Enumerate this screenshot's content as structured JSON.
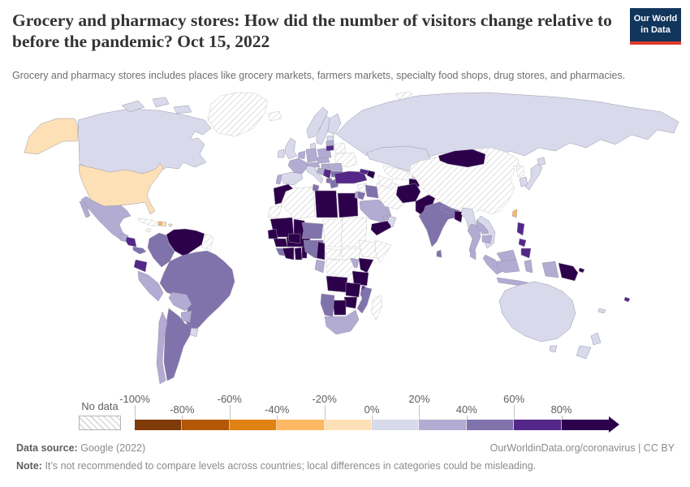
{
  "header": {
    "title": "Grocery and pharmacy stores: How did the number of visitors change relative to before the pandemic? Oct 15, 2022",
    "subtitle": "Grocery and pharmacy stores includes places like grocery markets, farmers markets, specialty food shops, drug stores, and pharmacies.",
    "logo": {
      "line1": "Our World",
      "line2": "in Data",
      "bg_color": "#12355c",
      "accent_color": "#dc3b2b"
    }
  },
  "legend": {
    "no_data_label": "No data",
    "ticks": [
      "-100%",
      "-80%",
      "-60%",
      "-40%",
      "-20%",
      "0%",
      "20%",
      "40%",
      "60%",
      "80%"
    ]
  },
  "footer": {
    "source_label": "Data source:",
    "source_value": "Google (2022)",
    "link_text": "OurWorldinData.org/coronavirus | CC BY",
    "note_label": "Note:",
    "note_text": "It’s not recommended to compare levels across countries; local differences in categories could be misleading."
  },
  "chart_data": {
    "type": "choropleth_map",
    "title": "Grocery and pharmacy stores: How did the number of visitors change relative to before the pandemic?",
    "date": "Oct 15, 2022",
    "unit": "percent change in visitors relative to pre-pandemic baseline",
    "legend_range": [
      "-100%",
      "80%+"
    ],
    "no_data": {
      "label": "No data",
      "style": "hatched"
    },
    "bands": [
      {
        "label": "-100 to -80%",
        "color": "#7f3b08"
      },
      {
        "label": "-80 to -60%",
        "color": "#b35806"
      },
      {
        "label": "-60 to -40%",
        "color": "#e08214"
      },
      {
        "label": "-40 to -20%",
        "color": "#fdb863"
      },
      {
        "label": "-20 to 0%",
        "color": "#fee0b6"
      },
      {
        "label": "0 to 20%",
        "color": "#d8daeb"
      },
      {
        "label": "20 to 40%",
        "color": "#b2abd2"
      },
      {
        "label": "40 to 60%",
        "color": "#8073ac"
      },
      {
        "label": "60 to 80%",
        "color": "#542788"
      },
      {
        "label": "80%+",
        "color": "#2d004b"
      }
    ],
    "countries": [
      {
        "id": "grl",
        "name": "Greenland",
        "band": "no data"
      },
      {
        "id": "can",
        "name": "Canada",
        "band": "0 to 20%"
      },
      {
        "id": "usa",
        "name": "United States",
        "band": "-20 to 0%"
      },
      {
        "id": "mex",
        "name": "Mexico",
        "band": "20 to 40%"
      },
      {
        "id": "gtm",
        "name": "Guatemala",
        "band": "20 to 40%"
      },
      {
        "id": "nic",
        "name": "Nicaragua",
        "band": "60 to 80%"
      },
      {
        "id": "pan",
        "name": "Panama",
        "band": "40 to 60%"
      },
      {
        "id": "cub",
        "name": "Cuba",
        "band": "no data"
      },
      {
        "id": "jam",
        "name": "Jamaica",
        "band": "no data"
      },
      {
        "id": "hti",
        "name": "Haiti",
        "band": "-40 to -20%"
      },
      {
        "id": "dom",
        "name": "Dominican Republic",
        "band": "-20 to 0%"
      },
      {
        "id": "pri",
        "name": "Puerto Rico",
        "band": "-20 to 0%"
      },
      {
        "id": "ven",
        "name": "Venezuela",
        "band": "80%+"
      },
      {
        "id": "guy",
        "name": "Guyana & Suriname",
        "band": "no data"
      },
      {
        "id": "col",
        "name": "Colombia",
        "band": "40 to 60%"
      },
      {
        "id": "ecu",
        "name": "Ecuador",
        "band": "60 to 80%"
      },
      {
        "id": "per",
        "name": "Peru",
        "band": "20 to 40%"
      },
      {
        "id": "bra",
        "name": "Brazil",
        "band": "40 to 60%"
      },
      {
        "id": "bol",
        "name": "Bolivia",
        "band": "20 to 40%"
      },
      {
        "id": "pry",
        "name": "Paraguay",
        "band": "20 to 40%"
      },
      {
        "id": "ury",
        "name": "Uruguay",
        "band": "0 to 20%"
      },
      {
        "id": "arg",
        "name": "Argentina",
        "band": "40 to 60%"
      },
      {
        "id": "chl",
        "name": "Chile",
        "band": "20 to 40%"
      },
      {
        "id": "isl",
        "name": "Iceland",
        "band": "no data"
      },
      {
        "id": "sjm",
        "name": "Svalbard",
        "band": "no data"
      },
      {
        "id": "nor",
        "name": "Norway",
        "band": "0 to 20%"
      },
      {
        "id": "swe",
        "name": "Sweden",
        "band": "0 to 20%"
      },
      {
        "id": "fin",
        "name": "Finland",
        "band": "0 to 20%"
      },
      {
        "id": "dnk",
        "name": "Denmark",
        "band": "0 to 20%"
      },
      {
        "id": "gbr",
        "name": "United Kingdom",
        "band": "0 to 20%"
      },
      {
        "id": "irl",
        "name": "Ireland",
        "band": "0 to 20%"
      },
      {
        "id": "nld",
        "name": "Netherlands & Belgium",
        "band": "20 to 40%"
      },
      {
        "id": "deu",
        "name": "Germany",
        "band": "20 to 40%"
      },
      {
        "id": "fra",
        "name": "France",
        "band": "20 to 40%"
      },
      {
        "id": "esp",
        "name": "Spain",
        "band": "0 to 20%"
      },
      {
        "id": "prt",
        "name": "Portugal",
        "band": "20 to 40%"
      },
      {
        "id": "ita",
        "name": "Italy",
        "band": "0 to 20%"
      },
      {
        "id": "aut",
        "name": "Austria & Switzerland",
        "band": "20 to 40%"
      },
      {
        "id": "cze",
        "name": "Czechia & Slovakia",
        "band": "20 to 40%"
      },
      {
        "id": "hun",
        "name": "Hungary",
        "band": "20 to 40%"
      },
      {
        "id": "pol",
        "name": "Poland",
        "band": "20 to 40%"
      },
      {
        "id": "ltu",
        "name": "Lithuania",
        "band": "60 to 80%"
      },
      {
        "id": "lva",
        "name": "Latvia",
        "band": "20 to 40%"
      },
      {
        "id": "est",
        "name": "Estonia",
        "band": "0 to 20%"
      },
      {
        "id": "blr",
        "name": "Belarus",
        "band": "no data"
      },
      {
        "id": "ukr",
        "name": "Ukraine",
        "band": "no data"
      },
      {
        "id": "rou",
        "name": "Romania",
        "band": "20 to 40%"
      },
      {
        "id": "srb",
        "name": "Serbia",
        "band": "60 to 80%"
      },
      {
        "id": "hrv",
        "name": "Croatia & Bosnia",
        "band": "20 to 40%"
      },
      {
        "id": "bgr",
        "name": "Bulgaria",
        "band": "40 to 60%"
      },
      {
        "id": "alb",
        "name": "Albania & North Macedonia",
        "band": "40 to 60%"
      },
      {
        "id": "grc",
        "name": "Greece",
        "band": "40 to 60%"
      },
      {
        "id": "rus",
        "name": "Russia",
        "band": "0 to 20%"
      },
      {
        "id": "tur",
        "name": "Turkey",
        "band": "60 to 80%"
      },
      {
        "id": "syr",
        "name": "Syria",
        "band": "no data"
      },
      {
        "id": "irq",
        "name": "Iraq",
        "band": "40 to 60%"
      },
      {
        "id": "isr",
        "name": "Israel",
        "band": "20 to 40%"
      },
      {
        "id": "jor",
        "name": "Jordan",
        "band": "40 to 60%"
      },
      {
        "id": "sau",
        "name": "Saudi Arabia",
        "band": "20 to 40%"
      },
      {
        "id": "yem",
        "name": "Yemen",
        "band": "80%+"
      },
      {
        "id": "omn",
        "name": "Oman",
        "band": "0 to 20%"
      },
      {
        "id": "are",
        "name": "United Arab Emirates",
        "band": "20 to 40%"
      },
      {
        "id": "irn",
        "name": "Iran",
        "band": "no data"
      },
      {
        "id": "geo",
        "name": "Georgia",
        "band": "60 to 80%"
      },
      {
        "id": "aze",
        "name": "Azerbaijan",
        "band": "80%+"
      },
      {
        "id": "kaz",
        "name": "Kazakhstan",
        "band": "0 to 20%"
      },
      {
        "id": "uzb",
        "name": "Uzbekistan",
        "band": "no data"
      },
      {
        "id": "tkm",
        "name": "Turkmenistan",
        "band": "no data"
      },
      {
        "id": "kgz",
        "name": "Kyrgyzstan",
        "band": "0 to 20%"
      },
      {
        "id": "tjk",
        "name": "Tajikistan",
        "band": "80%+"
      },
      {
        "id": "afg",
        "name": "Afghanistan",
        "band": "80%+"
      },
      {
        "id": "pak",
        "name": "Pakistan",
        "band": "80%+"
      },
      {
        "id": "ind",
        "name": "India",
        "band": "40 to 60%"
      },
      {
        "id": "npl",
        "name": "Nepal",
        "band": "40 to 60%"
      },
      {
        "id": "bgd",
        "name": "Bangladesh",
        "band": "80%+"
      },
      {
        "id": "lka",
        "name": "Sri Lanka",
        "band": "40 to 60%"
      },
      {
        "id": "mmr",
        "name": "Myanmar",
        "band": "0 to 20%"
      },
      {
        "id": "tha",
        "name": "Thailand",
        "band": "20 to 40%"
      },
      {
        "id": "lao",
        "name": "Laos",
        "band": "20 to 40%"
      },
      {
        "id": "khm",
        "name": "Cambodia",
        "band": "20 to 40%"
      },
      {
        "id": "vnm",
        "name": "Vietnam",
        "band": "0 to 20%"
      },
      {
        "id": "mys",
        "name": "Malaysia",
        "band": "20 to 40%"
      },
      {
        "id": "idn",
        "name": "Indonesia",
        "band": "20 to 40%"
      },
      {
        "id": "phl",
        "name": "Philippines",
        "band": "60 to 80%"
      },
      {
        "id": "chn",
        "name": "China",
        "band": "no data"
      },
      {
        "id": "mng",
        "name": "Mongolia",
        "band": "80%+"
      },
      {
        "id": "prk",
        "name": "North Korea",
        "band": "no data"
      },
      {
        "id": "kor",
        "name": "South Korea",
        "band": "0 to 20%"
      },
      {
        "id": "jpn",
        "name": "Japan",
        "band": "0 to 20%"
      },
      {
        "id": "twn",
        "name": "Taiwan",
        "band": "-40 to -20%"
      },
      {
        "id": "png",
        "name": "Papua New Guinea",
        "band": "80%+"
      },
      {
        "id": "aus",
        "name": "Australia",
        "band": "0 to 20%"
      },
      {
        "id": "nzl",
        "name": "New Zealand",
        "band": "0 to 20%"
      },
      {
        "id": "fji",
        "name": "Fiji",
        "band": "60 to 80%"
      },
      {
        "id": "ncl",
        "name": "New Caledonia",
        "band": "0 to 20%"
      },
      {
        "id": "mar",
        "name": "Morocco",
        "band": "80%+"
      },
      {
        "id": "dza",
        "name": "Algeria",
        "band": "no data"
      },
      {
        "id": "tun",
        "name": "Tunisia",
        "band": "40 to 60%"
      },
      {
        "id": "lby",
        "name": "Libya",
        "band": "80%+"
      },
      {
        "id": "egy",
        "name": "Egypt",
        "band": "80%+"
      },
      {
        "id": "esh",
        "name": "Western Sahara",
        "band": "no data"
      },
      {
        "id": "mrt",
        "name": "Mauritania",
        "band": "80%+"
      },
      {
        "id": "mli",
        "name": "Mali",
        "band": "80%+"
      },
      {
        "id": "sen",
        "name": "Senegal",
        "band": "80%+"
      },
      {
        "id": "gin",
        "name": "Guinea",
        "band": "80%+"
      },
      {
        "id": "sle",
        "name": "Sierra Leone & Liberia",
        "band": "40 to 60%"
      },
      {
        "id": "civ",
        "name": "Côte d'Ivoire",
        "band": "80%+"
      },
      {
        "id": "bfa",
        "name": "Burkina Faso",
        "band": "80%+"
      },
      {
        "id": "gha",
        "name": "Ghana",
        "band": "80%+"
      },
      {
        "id": "ben",
        "name": "Benin & Togo",
        "band": "80%+"
      },
      {
        "id": "ner",
        "name": "Niger",
        "band": "40 to 60%"
      },
      {
        "id": "nga",
        "name": "Nigeria",
        "band": "40 to 60%"
      },
      {
        "id": "tcd",
        "name": "Chad",
        "band": "no data"
      },
      {
        "id": "sdn",
        "name": "Sudan",
        "band": "no data"
      },
      {
        "id": "ssd",
        "name": "South Sudan",
        "band": "no data"
      },
      {
        "id": "eth",
        "name": "Ethiopia",
        "band": "no data"
      },
      {
        "id": "som",
        "name": "Somalia",
        "band": "no data"
      },
      {
        "id": "caf",
        "name": "Central African Republic",
        "band": "no data"
      },
      {
        "id": "cmr",
        "name": "Cameroon",
        "band": "80%+"
      },
      {
        "id": "ken",
        "name": "Kenya",
        "band": "80%+"
      },
      {
        "id": "uga",
        "name": "Uganda",
        "band": "20 to 40%"
      },
      {
        "id": "cod",
        "name": "Democratic Republic of Congo",
        "band": "no data"
      },
      {
        "id": "gab",
        "name": "Gabon & Congo",
        "band": "20 to 40%"
      },
      {
        "id": "tza",
        "name": "Tanzania",
        "band": "80%+"
      },
      {
        "id": "ago",
        "name": "Angola",
        "band": "80%+"
      },
      {
        "id": "zmb",
        "name": "Zambia",
        "band": "80%+"
      },
      {
        "id": "mwi",
        "name": "Malawi",
        "band": "60 to 80%"
      },
      {
        "id": "moz",
        "name": "Mozambique",
        "band": "40 to 60%"
      },
      {
        "id": "zwe",
        "name": "Zimbabwe",
        "band": "80%+"
      },
      {
        "id": "bwa",
        "name": "Botswana",
        "band": "80%+"
      },
      {
        "id": "nam",
        "name": "Namibia",
        "band": "40 to 60%"
      },
      {
        "id": "zaf",
        "name": "South Africa",
        "band": "20 to 40%"
      },
      {
        "id": "mdg",
        "name": "Madagascar",
        "band": "no data"
      }
    ]
  }
}
